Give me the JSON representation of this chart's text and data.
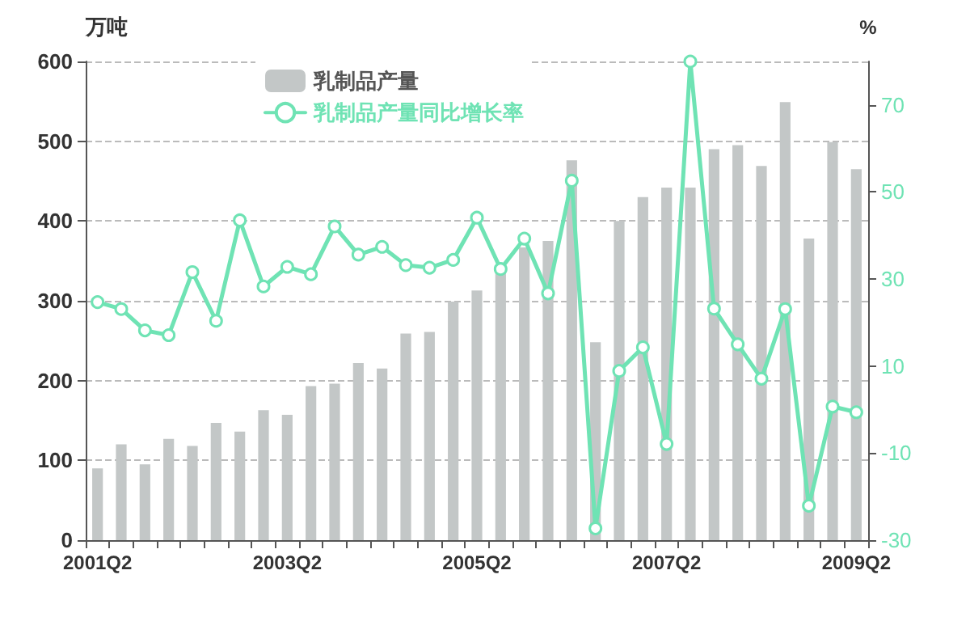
{
  "chart_data": {
    "type": "bar",
    "ylabel": "万吨",
    "y2label": "%",
    "categories": [
      "2001Q2",
      null,
      null,
      null,
      null,
      null,
      null,
      null,
      "2003Q2",
      null,
      null,
      null,
      null,
      null,
      null,
      null,
      "2005Q2",
      null,
      null,
      null,
      null,
      null,
      null,
      null,
      "2007Q2",
      null,
      null,
      null,
      null,
      null,
      null,
      null,
      "2009Q2"
    ],
    "series": [
      {
        "name": "乳制品产量",
        "color": "#c3c7c7",
        "values": [
          90,
          120,
          95,
          127,
          118,
          147,
          136,
          163,
          157,
          193,
          196,
          222,
          215,
          259,
          261,
          299,
          313,
          340,
          367,
          375,
          476,
          248,
          400,
          430,
          442,
          442,
          490,
          495,
          469,
          549,
          378,
          499,
          465
        ]
      },
      {
        "name": "乳制品产量同比增长率",
        "type": "line",
        "axis": "y2",
        "color": "#6fe3b4",
        "marker": "circle",
        "values": [
          24.7,
          23.1,
          18.2,
          17.1,
          31.6,
          20.4,
          43.5,
          28.3,
          32.8,
          31.1,
          42.1,
          35.6,
          37.4,
          33.2,
          32.6,
          34.4,
          44.1,
          32.3,
          39.3,
          26.7,
          52.6,
          -27.3,
          8.9,
          14.3,
          -7.9,
          80,
          23.2,
          15.0,
          7.1,
          23.1,
          -22.1,
          0.7,
          -0.6
        ]
      }
    ],
    "ylim": [
      0,
      600
    ],
    "yticks": [
      0,
      100,
      200,
      300,
      400,
      500,
      600
    ],
    "y2lim": [
      -30,
      80
    ],
    "y2ticks": [
      -30,
      -10,
      10,
      30,
      50,
      70
    ],
    "grid": "y",
    "legend": "top left"
  }
}
